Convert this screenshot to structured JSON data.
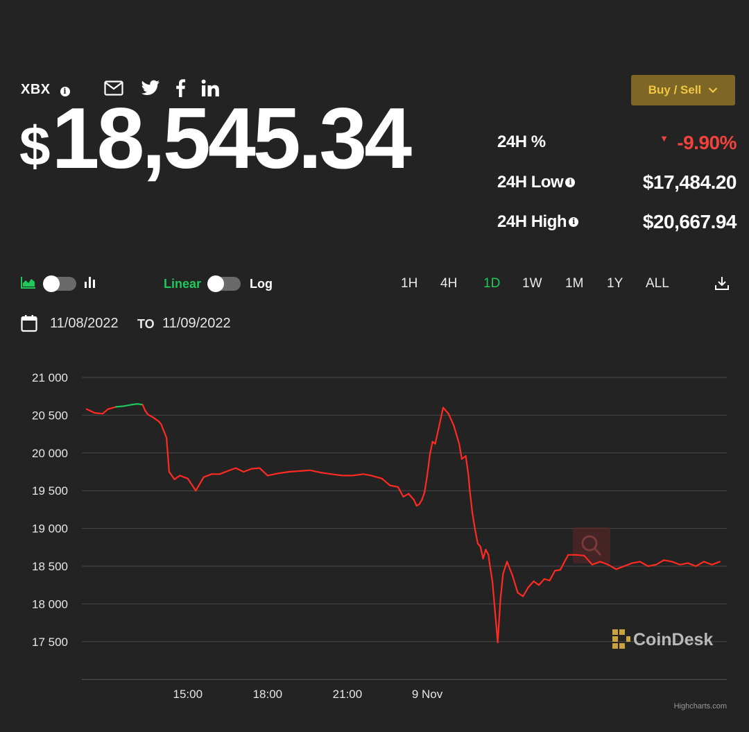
{
  "header": {
    "ticker": "XBX",
    "price_symbol": "$",
    "price": "18,545.34",
    "buy_sell_label": "Buy / Sell"
  },
  "stats": {
    "change_label": "24H %",
    "change_value": "-9.90%",
    "low_label": "24H Low",
    "low_value": "$17,484.20",
    "high_label": "24H High",
    "high_value": "$20,667.94"
  },
  "controls": {
    "scale_linear": "Linear",
    "scale_log": "Log",
    "ranges": [
      "1H",
      "4H",
      "1D",
      "1W",
      "1M",
      "1Y",
      "ALL"
    ],
    "active_range": "1D",
    "date_from": "11/08/2022",
    "date_to_label": "TO",
    "date_to": "11/09/2022"
  },
  "colors": {
    "up": "#1ec85a",
    "down": "#ff2a22",
    "accent": "#f2c744"
  },
  "branding": {
    "watermark": "CoinDesk",
    "credit": "Highcharts.com"
  },
  "chart_data": {
    "type": "line",
    "y_ticks": [
      "21 000",
      "20 500",
      "20 000",
      "19 500",
      "19 000",
      "18 500",
      "18 000",
      "17 500"
    ],
    "x_ticks": [
      "15:00",
      "18:00",
      "21:00",
      "9 Nov"
    ],
    "x_tick_hours": [
      15,
      18,
      21,
      24
    ],
    "ylim": [
      17000,
      21000
    ],
    "xlim_hours": [
      11.2,
      35.0
    ],
    "series": [
      {
        "x_hours": [
          11.2,
          11.5,
          11.8,
          12.0,
          12.3,
          12.6,
          12.9,
          13.1,
          13.3,
          13.4,
          13.5,
          13.7,
          13.9,
          14.0,
          14.2,
          14.3,
          14.5,
          14.7,
          15.0,
          15.3,
          15.6,
          15.9,
          16.2,
          16.5,
          16.8,
          17.1,
          17.4,
          17.7,
          18.0,
          18.4,
          18.8,
          19.2,
          19.6,
          20.0,
          20.4,
          20.8,
          21.2,
          21.6,
          21.9,
          22.1,
          22.3,
          22.6,
          22.9,
          23.1,
          23.3,
          23.5,
          23.6,
          23.7,
          23.8,
          23.9,
          24.0,
          24.1,
          24.2,
          24.3,
          24.4,
          24.6,
          24.8,
          25.0,
          25.2,
          25.3,
          25.45,
          25.55,
          25.6,
          25.7,
          25.8,
          25.9,
          26.0,
          26.1,
          26.2,
          26.3,
          26.35,
          26.45,
          26.55,
          26.65,
          26.75,
          26.85,
          27.0,
          27.2,
          27.4,
          27.6,
          27.8,
          28.0,
          28.2,
          28.4,
          28.6,
          28.8,
          29.0,
          29.3,
          29.6,
          29.9,
          30.2,
          30.5,
          30.8,
          31.1,
          31.4,
          31.7,
          32.0,
          32.3,
          32.6,
          32.9,
          33.2,
          33.5,
          33.8,
          34.1,
          34.4,
          34.7,
          35.0
        ],
        "y": [
          20580,
          20530,
          20520,
          20580,
          20610,
          20620,
          20640,
          20650,
          20640,
          20560,
          20510,
          20470,
          20420,
          20380,
          20200,
          19750,
          19650,
          19700,
          19660,
          19500,
          19680,
          19720,
          19720,
          19760,
          19800,
          19750,
          19790,
          19800,
          19700,
          19730,
          19750,
          19760,
          19770,
          19740,
          19720,
          19700,
          19700,
          19720,
          19700,
          19680,
          19660,
          19570,
          19550,
          19420,
          19460,
          19380,
          19300,
          19320,
          19380,
          19480,
          19700,
          19980,
          20150,
          20120,
          20280,
          20600,
          20520,
          20360,
          20120,
          19920,
          19960,
          19700,
          19500,
          19200,
          18980,
          18800,
          18760,
          18600,
          18720,
          18650,
          18520,
          18300,
          17900,
          17490,
          18050,
          18400,
          18560,
          18380,
          18150,
          18100,
          18220,
          18300,
          18250,
          18330,
          18310,
          18440,
          18450,
          18650,
          18650,
          18640,
          18520,
          18560,
          18520,
          18460,
          18500,
          18540,
          18560,
          18500,
          18520,
          18580,
          18560,
          18520,
          18540,
          18500,
          18560,
          18520,
          18560
        ]
      }
    ]
  }
}
